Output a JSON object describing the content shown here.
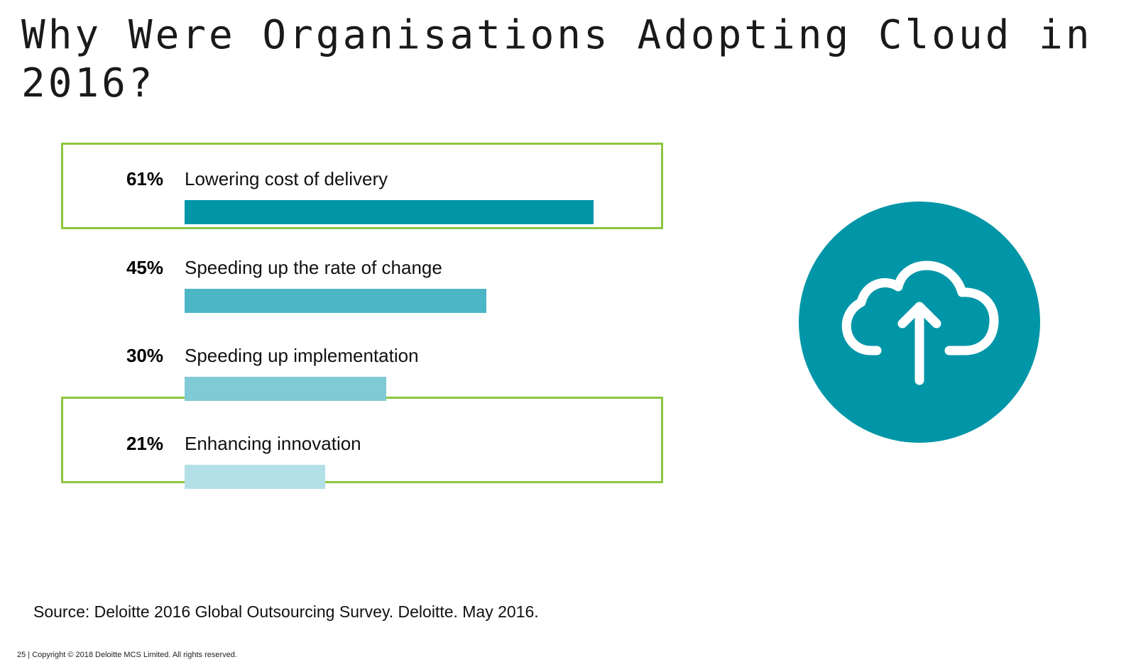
{
  "slide": {
    "title": "Why Were Organisations Adopting Cloud in 2016?",
    "source": "Source: Deloitte 2016 Global Outsourcing Survey. Deloitte. May 2016.",
    "footer": "25 | Copyright © 2018 Deloitte MCS Limited. All rights reserved."
  },
  "chart_data": {
    "type": "bar",
    "orientation": "horizontal",
    "title": "",
    "xlabel": "",
    "ylabel": "",
    "unit": "%",
    "xlim": [
      0,
      70
    ],
    "grid": false,
    "categories": [
      "Lowering cost of delivery",
      "Speeding up the rate of change",
      "Speeding up implementation",
      "Enhancing innovation"
    ],
    "values": [
      61,
      45,
      30,
      21
    ],
    "value_labels": [
      "61%",
      "45%",
      "30%",
      "21%"
    ],
    "bar_colors": [
      "#0096a7",
      "#4db6c6",
      "#7fcad4",
      "#b3e0e6"
    ],
    "highlighted": [
      "Lowering cost of delivery",
      "Enhancing innovation"
    ],
    "highlight_color": "#8cc63f"
  },
  "icon": {
    "name": "cloud-upload-icon",
    "circle_color": "#0096a7",
    "stroke_color": "#ffffff"
  }
}
